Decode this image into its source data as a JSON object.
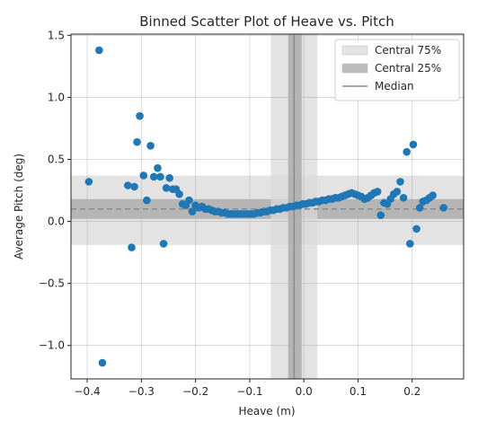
{
  "chart_data": {
    "type": "scatter",
    "title": "Binned Scatter Plot of Heave vs. Pitch",
    "xlabel": "Heave (m)",
    "ylabel": "Average Pitch (deg)",
    "xlim": [
      -0.43,
      0.295
    ],
    "ylim": [
      -1.27,
      1.51
    ],
    "xticks": [
      -0.4,
      -0.3,
      -0.2,
      -0.1,
      0.0,
      0.1,
      0.2
    ],
    "xtick_labels": [
      "−0.4",
      "−0.3",
      "−0.2",
      "−0.1",
      "0.0",
      "0.1",
      "0.2"
    ],
    "yticks": [
      -1.0,
      -0.5,
      0.0,
      0.5,
      1.0,
      1.5
    ],
    "ytick_labels": [
      "−1.0",
      "−0.5",
      "0.0",
      "0.5",
      "1.0",
      "1.5"
    ],
    "grid": true,
    "legend_position": "top-right",
    "colors": {
      "points": "#1f77b4",
      "central75": "#d9d9d9",
      "central25": "#a6a6a6",
      "median": "#8c8c8c"
    },
    "bands": {
      "x_central75": [
        -0.061,
        0.025
      ],
      "x_central25": [
        -0.029,
        -0.004
      ],
      "y_central75": [
        -0.19,
        0.37
      ],
      "y_central25": [
        0.02,
        0.18
      ]
    },
    "median": {
      "x": -0.018,
      "y": 0.1
    },
    "legend": [
      {
        "key": "central75",
        "label": "Central 75%"
      },
      {
        "key": "central25",
        "label": "Central 25%"
      },
      {
        "key": "median",
        "label": "Median"
      }
    ],
    "points": {
      "x": [
        -0.397,
        -0.378,
        -0.372,
        -0.325,
        -0.318,
        -0.313,
        -0.308,
        -0.303,
        -0.296,
        -0.29,
        -0.283,
        -0.277,
        -0.27,
        -0.265,
        -0.259,
        -0.254,
        -0.248,
        -0.242,
        -0.236,
        -0.23,
        -0.224,
        -0.218,
        -0.212,
        -0.206,
        -0.2,
        -0.194,
        -0.188,
        -0.182,
        -0.176,
        -0.17,
        -0.164,
        -0.158,
        -0.152,
        -0.146,
        -0.14,
        -0.134,
        -0.128,
        -0.122,
        -0.116,
        -0.11,
        -0.104,
        -0.098,
        -0.092,
        -0.086,
        -0.08,
        -0.074,
        -0.068,
        -0.062,
        -0.056,
        -0.05,
        -0.044,
        -0.038,
        -0.032,
        -0.026,
        -0.02,
        -0.014,
        -0.008,
        -0.002,
        0.004,
        0.01,
        0.016,
        0.022,
        0.028,
        0.034,
        0.04,
        0.046,
        0.052,
        0.058,
        0.064,
        0.07,
        0.076,
        0.082,
        0.088,
        0.094,
        0.1,
        0.106,
        0.112,
        0.118,
        0.124,
        0.13,
        0.136,
        0.142,
        0.148,
        0.154,
        0.16,
        0.166,
        0.172,
        0.178,
        0.184,
        0.19,
        0.196,
        0.202,
        0.208,
        0.214,
        0.22,
        0.226,
        0.232,
        0.238,
        0.258
      ],
      "y": [
        0.32,
        1.38,
        -1.14,
        0.29,
        -0.21,
        0.28,
        0.64,
        0.85,
        0.37,
        0.17,
        0.61,
        0.36,
        0.43,
        0.36,
        -0.18,
        0.27,
        0.35,
        0.26,
        0.26,
        0.22,
        0.14,
        0.13,
        0.17,
        0.08,
        0.13,
        0.11,
        0.12,
        0.1,
        0.1,
        0.09,
        0.08,
        0.08,
        0.07,
        0.07,
        0.06,
        0.06,
        0.06,
        0.06,
        0.06,
        0.06,
        0.06,
        0.06,
        0.06,
        0.07,
        0.07,
        0.08,
        0.08,
        0.09,
        0.09,
        0.1,
        0.1,
        0.11,
        0.11,
        0.12,
        0.12,
        0.13,
        0.13,
        0.14,
        0.14,
        0.15,
        0.15,
        0.16,
        0.16,
        0.17,
        0.17,
        0.18,
        0.18,
        0.19,
        0.19,
        0.2,
        0.21,
        0.22,
        0.23,
        0.22,
        0.21,
        0.2,
        0.18,
        0.19,
        0.21,
        0.23,
        0.24,
        0.05,
        0.15,
        0.14,
        0.18,
        0.22,
        0.24,
        0.32,
        0.19,
        0.56,
        -0.18,
        0.62,
        -0.06,
        0.11,
        0.16,
        0.17,
        0.19,
        0.21,
        0.11
      ]
    }
  }
}
